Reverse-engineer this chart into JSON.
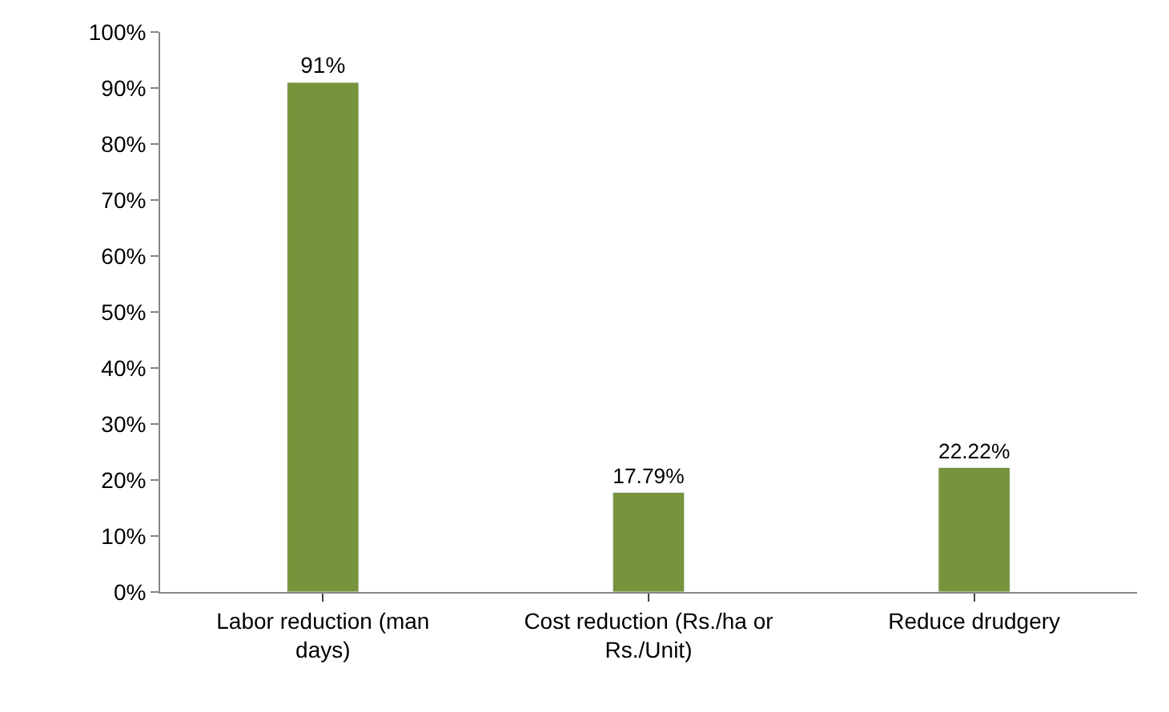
{
  "chart_data": {
    "type": "bar",
    "categories": [
      "Labor reduction (man days)",
      "Cost reduction (Rs./ha or Rs./Unit)",
      "Reduce drudgery"
    ],
    "values": [
      91,
      17.79,
      22.22
    ],
    "value_labels": [
      "91%",
      "17.79%",
      "22.22%"
    ],
    "color": "#77933c",
    "ylim": [
      0,
      100
    ],
    "yticks": [
      {
        "value": 0,
        "label": "0%"
      },
      {
        "value": 10,
        "label": "10%"
      },
      {
        "value": 20,
        "label": "20%"
      },
      {
        "value": 30,
        "label": "30%"
      },
      {
        "value": 40,
        "label": "40%"
      },
      {
        "value": 50,
        "label": "50%"
      },
      {
        "value": 60,
        "label": "60%"
      },
      {
        "value": 70,
        "label": "70%"
      },
      {
        "value": 80,
        "label": "80%"
      },
      {
        "value": 90,
        "label": "90%"
      },
      {
        "value": 100,
        "label": "100%"
      }
    ],
    "legend": false
  }
}
